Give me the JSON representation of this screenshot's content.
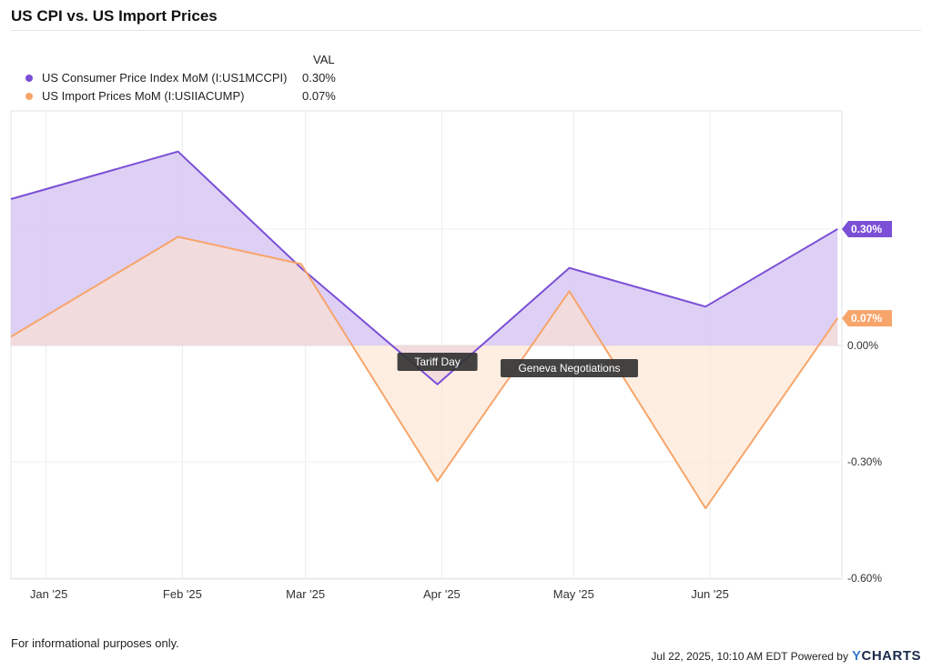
{
  "title": "US CPI vs. US Import Prices",
  "legend": {
    "header": "VAL",
    "items": [
      {
        "label": "US Consumer Price Index MoM (I:US1MCCPI)",
        "value": "0.30%",
        "color": "#7b4fd6"
      },
      {
        "label": "US Import Prices MoM (I:USIIACUMP)",
        "value": "0.07%",
        "color": "#f7a56b"
      }
    ]
  },
  "chart_data": {
    "type": "area",
    "x_tick_labels": [
      "Jan '25",
      "Feb '25",
      "Mar '25",
      "Apr '25",
      "May '25",
      "Jun '25"
    ],
    "y_tick_labels": [
      "0.00%",
      "-0.30%",
      "-0.60%"
    ],
    "ylim": [
      -0.6,
      0.6
    ],
    "grid": true,
    "series": [
      {
        "name": "US Consumer Price Index MoM (I:US1MCCPI)",
        "color": "#7b4fd6",
        "fill": "#d8c8f3",
        "x": [
          "2024-12-31",
          "2025-01-31",
          "2025-02-28",
          "2025-03-31",
          "2025-04-30",
          "2025-05-31",
          "2025-06-30"
        ],
        "values": [
          0.4,
          0.5,
          0.2,
          -0.1,
          0.2,
          0.1,
          0.3
        ],
        "end_label": "0.30%"
      },
      {
        "name": "US Import Prices MoM (I:USIIACUMP)",
        "color": "#f7a56b",
        "fill": "#fde2cd",
        "x": [
          "2024-12-31",
          "2025-01-31",
          "2025-02-28",
          "2025-03-31",
          "2025-04-30",
          "2025-05-31",
          "2025-06-30"
        ],
        "values": [
          0.07,
          0.28,
          0.21,
          -0.35,
          0.14,
          -0.42,
          0.07
        ],
        "end_label": "0.07%"
      }
    ],
    "annotations": [
      {
        "text": "Tariff Day",
        "series": 0,
        "point": 3
      },
      {
        "text": "Geneva Negotiations",
        "series": 0,
        "point": 4
      }
    ]
  },
  "footer": {
    "note": "For informational purposes only.",
    "credit": "Jul 22, 2025, 10:10 AM EDT Powered by",
    "brand_y": "Y",
    "brand_rest": "CHARTS"
  }
}
